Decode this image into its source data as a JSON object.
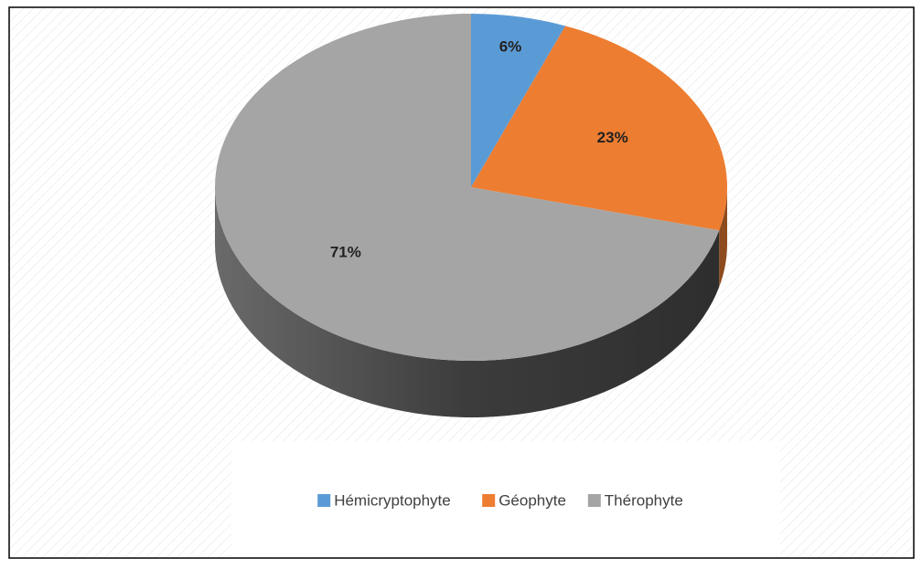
{
  "chart_data": {
    "type": "pie",
    "categories": [
      "Hémicryptophyte",
      "Géophyte",
      "Thérophyte"
    ],
    "values": [
      6,
      23,
      71
    ],
    "value_labels": [
      "6%",
      "23%",
      "71%"
    ],
    "colors": [
      "#5b9bd5",
      "#ed7d31",
      "#a5a5a5"
    ],
    "legend": "bottom"
  }
}
